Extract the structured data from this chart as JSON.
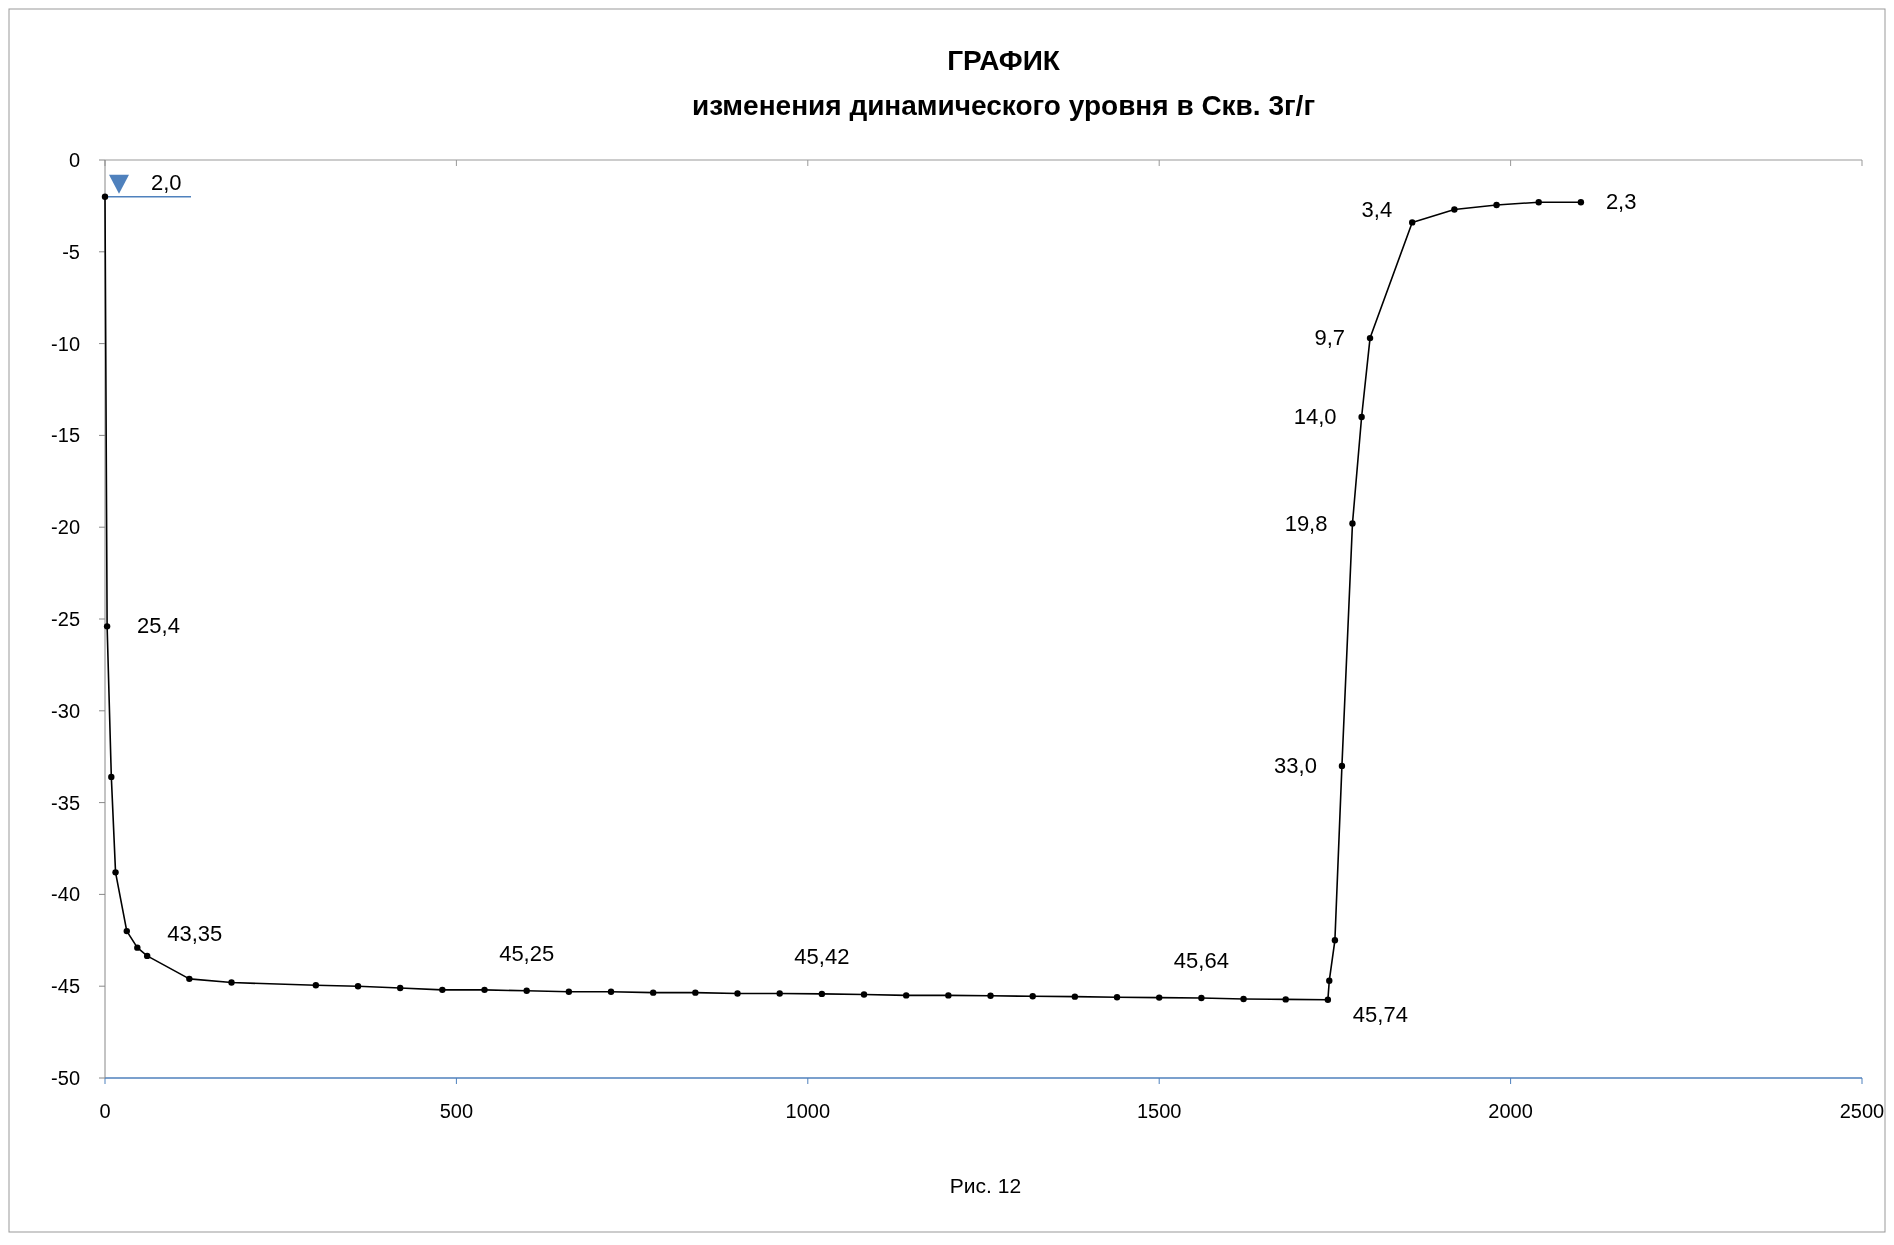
{
  "chart_data": {
    "type": "line",
    "title": "ГРАФИК",
    "subtitle": "изменения динамического уровня в Скв. 3г/г",
    "x": [
      0,
      3,
      9,
      15,
      31,
      46,
      60,
      120,
      180,
      300,
      360,
      420,
      480,
      540,
      600,
      660,
      720,
      780,
      840,
      900,
      960,
      1020,
      1080,
      1140,
      1200,
      1260,
      1320,
      1380,
      1440,
      1500,
      1560,
      1620,
      1680,
      1740,
      1742,
      1750,
      1760,
      1775,
      1788,
      1800,
      1860,
      1920,
      1980,
      2040,
      2100
    ],
    "series": [
      {
        "color": "#000000",
        "values": [
          -2.0,
          -25.4,
          -33.6,
          -38.8,
          -42.0,
          -42.9,
          -43.35,
          -44.6,
          -44.8,
          -44.95,
          -45.0,
          -45.1,
          -45.2,
          -45.2,
          -45.25,
          -45.3,
          -45.3,
          -45.35,
          -45.35,
          -45.4,
          -45.4,
          -45.42,
          -45.45,
          -45.5,
          -45.5,
          -45.52,
          -45.55,
          -45.57,
          -45.6,
          -45.62,
          -45.64,
          -45.7,
          -45.72,
          -45.74,
          -44.7,
          -42.5,
          -33.0,
          -19.8,
          -14.0,
          -9.7,
          -3.4,
          -2.7,
          -2.45,
          -2.3,
          -2.3
        ]
      }
    ],
    "xlim": [
      0,
      2500
    ],
    "xticks": [
      0,
      500,
      1000,
      1500,
      2000,
      2500
    ],
    "ylim": [
      -50,
      0
    ],
    "yticks": [
      -50,
      -45,
      -40,
      -35,
      -30,
      -25,
      -20,
      -15,
      -10,
      -5,
      0
    ],
    "grid": false,
    "marker": "circle",
    "line_style": "solid",
    "annotations": [
      {
        "text": "2,0",
        "x": 0,
        "y": -2.0
      },
      {
        "text": "25,4",
        "x": 3,
        "y": -25.4
      },
      {
        "text": "43,35",
        "x": 60,
        "y": -43.35
      },
      {
        "text": "45,25",
        "x": 600,
        "y": -45.25
      },
      {
        "text": "45,42",
        "x": 1020,
        "y": -45.42
      },
      {
        "text": "45,64",
        "x": 1560,
        "y": -45.64
      },
      {
        "text": "45,74",
        "x": 1740,
        "y": -45.74
      },
      {
        "text": "33,0",
        "x": 1760,
        "y": -33.0
      },
      {
        "text": "19,8",
        "x": 1775,
        "y": -19.8
      },
      {
        "text": "14,0",
        "x": 1788,
        "y": -14.0
      },
      {
        "text": "9,7",
        "x": 1800,
        "y": -9.7
      },
      {
        "text": "3,4",
        "x": 1860,
        "y": -3.4
      },
      {
        "text": "2,3",
        "x": 2100,
        "y": -2.3
      },
      "Рис. 12"
    ]
  }
}
